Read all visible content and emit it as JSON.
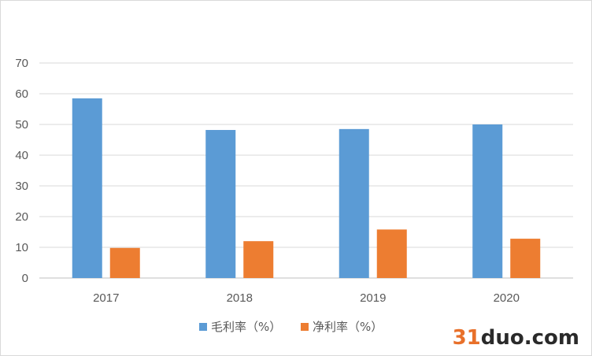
{
  "chart_data": {
    "type": "bar",
    "categories": [
      "2017",
      "2018",
      "2019",
      "2020"
    ],
    "series": [
      {
        "name": "毛利率（%）",
        "values": [
          58.5,
          48.2,
          48.5,
          50.0
        ],
        "color": "#5b9bd5"
      },
      {
        "name": "净利率（%）",
        "values": [
          9.8,
          12.0,
          15.8,
          12.8
        ],
        "color": "#ed7d31"
      }
    ],
    "yticks": [
      "0",
      "10",
      "20",
      "30",
      "40",
      "50",
      "60",
      "70"
    ],
    "ylim": [
      0,
      70
    ],
    "grid": true,
    "legend": "bottom"
  },
  "watermark": {
    "part1": "31",
    "part2": "duo.com"
  }
}
